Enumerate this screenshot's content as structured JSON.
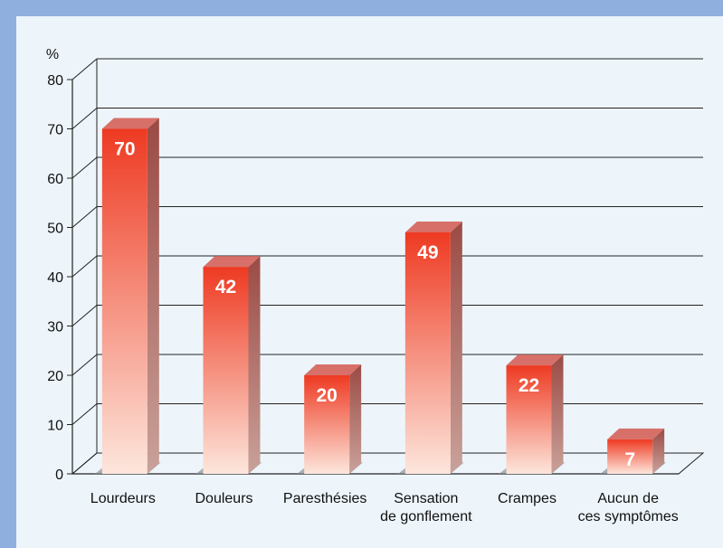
{
  "chart_data": {
    "type": "bar",
    "categories": [
      [
        "Lourdeurs"
      ],
      [
        "Douleurs"
      ],
      [
        "Paresthésies"
      ],
      [
        "Sensation",
        "de gonflement"
      ],
      [
        "Crampes"
      ],
      [
        "Aucun de",
        "ces symptômes"
      ]
    ],
    "values": [
      70,
      42,
      20,
      49,
      22,
      7
    ],
    "ylabel": "%",
    "ylim": [
      0,
      80
    ],
    "yticks": [
      0,
      10,
      20,
      30,
      40,
      50,
      60,
      70,
      80
    ],
    "grid": true,
    "legend": "none",
    "colors": {
      "bar_top": "#ee3a22",
      "bar_bottom": "#fde6dc",
      "bar_side": "#9b4a44",
      "bar_cap": "#d8706a",
      "page_background": "#edf5fb",
      "border": "#8fb0df"
    }
  }
}
